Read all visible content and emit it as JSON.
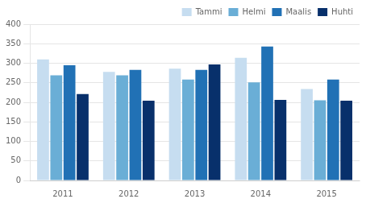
{
  "chart_data": {
    "type": "bar",
    "categories": [
      "2011",
      "2012",
      "2013",
      "2014",
      "2015"
    ],
    "series": [
      {
        "name": "Tammi",
        "color": "#c6ddf0",
        "values": [
          310,
          278,
          286,
          314,
          234
        ]
      },
      {
        "name": "Helmi",
        "color": "#6aaed6",
        "values": [
          269,
          269,
          258,
          251,
          205
        ]
      },
      {
        "name": "Maalis",
        "color": "#2171b5",
        "values": [
          295,
          283,
          283,
          343,
          258
        ]
      },
      {
        "name": "Huhti",
        "color": "#08306b",
        "values": [
          221,
          204,
          297,
          206,
          204
        ]
      }
    ],
    "ylim": [
      0,
      400
    ],
    "yticks": [
      0,
      50,
      100,
      150,
      200,
      250,
      300,
      350,
      400
    ],
    "grid": true,
    "legend": "upper right"
  }
}
